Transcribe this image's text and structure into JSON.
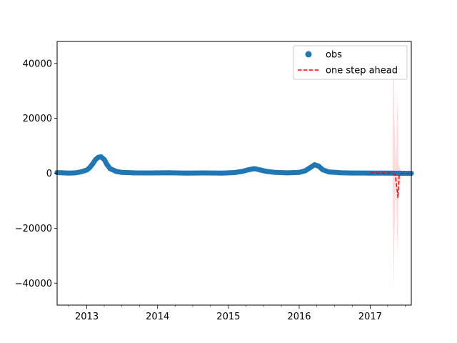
{
  "chart_data": {
    "type": "line",
    "title": "",
    "xlabel": "",
    "ylabel": "",
    "xlim": [
      "2012-08-01",
      "2017-08-01"
    ],
    "ylim": [
      -48000,
      48000
    ],
    "x_ticks": [
      {
        "label": "2013",
        "date": "2013-01-01"
      },
      {
        "label": "2014",
        "date": "2014-01-01"
      },
      {
        "label": "2015",
        "date": "2015-01-01"
      },
      {
        "label": "2016",
        "date": "2016-01-01"
      },
      {
        "label": "2017",
        "date": "2017-01-01"
      }
    ],
    "y_ticks": [
      40000,
      20000,
      0,
      -20000,
      -40000
    ],
    "legend": {
      "placement": "top-right",
      "entries": [
        {
          "label": "obs",
          "style": "marker-circle",
          "color": "#1f77b4"
        },
        {
          "label": "one step ahead",
          "style": "dashed-line",
          "color": "#ff0000"
        }
      ]
    },
    "series": [
      {
        "name": "obs",
        "kind": "scatter",
        "color": "#1f77b4",
        "points": [
          [
            "2012-08-01",
            250
          ],
          [
            "2012-09-01",
            150
          ],
          [
            "2012-10-01",
            80
          ],
          [
            "2012-11-01",
            150
          ],
          [
            "2012-12-01",
            500
          ],
          [
            "2013-01-01",
            1200
          ],
          [
            "2013-01-15",
            2000
          ],
          [
            "2013-02-01",
            3500
          ],
          [
            "2013-02-15",
            5000
          ],
          [
            "2013-03-01",
            5800
          ],
          [
            "2013-03-15",
            6000
          ],
          [
            "2013-04-01",
            5000
          ],
          [
            "2013-04-15",
            3200
          ],
          [
            "2013-05-01",
            1700
          ],
          [
            "2013-06-01",
            700
          ],
          [
            "2013-07-01",
            300
          ],
          [
            "2013-09-01",
            150
          ],
          [
            "2013-12-01",
            120
          ],
          [
            "2014-03-01",
            180
          ],
          [
            "2014-06-01",
            80
          ],
          [
            "2014-09-01",
            120
          ],
          [
            "2014-12-01",
            60
          ],
          [
            "2015-02-01",
            250
          ],
          [
            "2015-03-15",
            700
          ],
          [
            "2015-04-15",
            1300
          ],
          [
            "2015-05-15",
            1700
          ],
          [
            "2015-06-15",
            1200
          ],
          [
            "2015-07-15",
            700
          ],
          [
            "2015-09-01",
            300
          ],
          [
            "2015-11-01",
            150
          ],
          [
            "2016-01-01",
            350
          ],
          [
            "2016-02-01",
            900
          ],
          [
            "2016-03-01",
            2200
          ],
          [
            "2016-03-20",
            3100
          ],
          [
            "2016-04-10",
            2600
          ],
          [
            "2016-05-01",
            1300
          ],
          [
            "2016-06-01",
            500
          ],
          [
            "2016-08-01",
            200
          ],
          [
            "2016-10-01",
            100
          ],
          [
            "2017-01-01",
            80
          ],
          [
            "2017-04-01",
            60
          ],
          [
            "2017-08-01",
            -30
          ]
        ]
      },
      {
        "name": "one step ahead",
        "kind": "dashed-line",
        "color": "#ff0000",
        "points": [
          [
            "2017-01-01",
            150
          ],
          [
            "2017-03-01",
            100
          ],
          [
            "2017-04-15",
            0
          ],
          [
            "2017-05-01",
            -200
          ],
          [
            "2017-05-10",
            -500
          ],
          [
            "2017-05-18",
            -5000
          ],
          [
            "2017-05-24",
            -9000
          ],
          [
            "2017-05-30",
            -1000
          ],
          [
            "2017-06-10",
            0
          ],
          [
            "2017-08-01",
            -100
          ]
        ]
      }
    ],
    "confidence_band": {
      "color": "#ff9999",
      "intervals": [
        [
          "2017-04-27",
          0,
          0
        ],
        [
          "2017-04-30",
          -28000,
          37000
        ],
        [
          "2017-05-03",
          -43000,
          44000
        ],
        [
          "2017-05-06",
          -22000,
          20000
        ],
        [
          "2017-05-14",
          -3000,
          2000
        ],
        [
          "2017-05-22",
          -30000,
          29000
        ],
        [
          "2017-05-27",
          -5000,
          3000
        ],
        [
          "2017-06-10",
          -1000,
          800
        ]
      ]
    }
  }
}
